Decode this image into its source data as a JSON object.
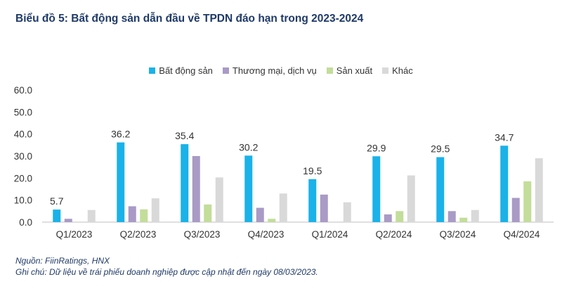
{
  "chart_data": {
    "type": "bar",
    "title": "Biểu đồ 5: Bất động sản dẫn đầu về TPDN đáo hạn trong 2023-2024",
    "categories": [
      "Q1/2023",
      "Q2/2023",
      "Q3/2023",
      "Q4/2023",
      "Q1/2024",
      "Q2/2024",
      "Q3/2024",
      "Q4/2024"
    ],
    "series": [
      {
        "name": "Bất động sản",
        "color": "#1ab2e8",
        "values": [
          5.7,
          36.2,
          35.4,
          30.2,
          19.5,
          29.9,
          29.5,
          34.7
        ]
      },
      {
        "name": "Thương mại, dịch vụ",
        "color": "#a99ac6",
        "values": [
          1.5,
          7.2,
          30.0,
          6.5,
          12.5,
          3.5,
          5.0,
          11.0
        ]
      },
      {
        "name": "Sản xuất",
        "color": "#c3dd9a",
        "values": [
          0.0,
          5.8,
          8.0,
          1.5,
          0.0,
          5.0,
          2.0,
          18.5
        ]
      },
      {
        "name": "Khác",
        "color": "#d9d9d9",
        "values": [
          5.5,
          10.8,
          20.3,
          13.0,
          9.0,
          21.2,
          5.5,
          29.0
        ]
      }
    ],
    "data_labels": [
      "5.7",
      "36.2",
      "35.4",
      "30.2",
      "19.5",
      "29.9",
      "29.5",
      "34.7"
    ],
    "yticks": [
      "0.0",
      "10.0",
      "20.0",
      "30.0",
      "40.0",
      "50.0",
      "60.0"
    ],
    "ylim": [
      0,
      60
    ],
    "grid": false,
    "legend_position": "top-center"
  },
  "footer": {
    "source": "Nguồn: FiinRatings, HNX",
    "note": "Ghi chú: Dữ liệu về trái phiếu doanh nghiệp được cập nhật đến ngày 08/03/2023."
  }
}
